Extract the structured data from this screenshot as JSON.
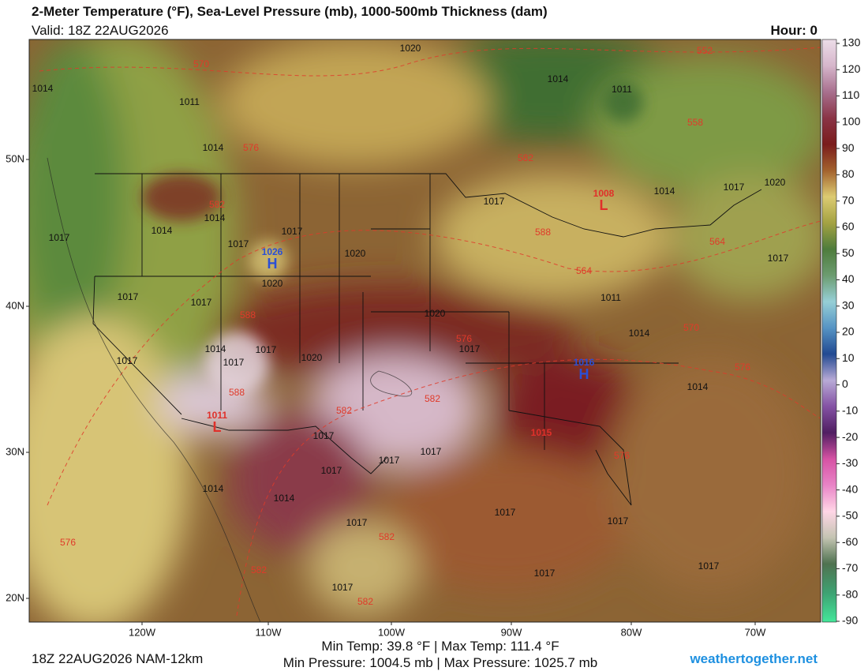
{
  "header": {
    "title": "2-Meter Temperature (°F), Sea-Level Pressure (mb), 1000-500mb Thickness (dam)",
    "valid": "Valid: 18Z 22AUG2026",
    "hour": "Hour: 0"
  },
  "lat_labels": [
    "50N",
    "40N",
    "30N",
    "20N"
  ],
  "lon_labels": [
    "120W",
    "110W",
    "100W",
    "90W",
    "80W",
    "70W"
  ],
  "colorbar": {
    "range": [
      -90,
      130
    ],
    "ticks": [
      130,
      120,
      110,
      100,
      90,
      80,
      70,
      60,
      50,
      40,
      30,
      20,
      10,
      0,
      -10,
      -20,
      -30,
      -40,
      -50,
      -60,
      -70,
      -80,
      -90
    ]
  },
  "pressure_labels": [
    "1020",
    "1014",
    "1011",
    "1014",
    "1011",
    "1014",
    "1014",
    "1014",
    "1017",
    "1017",
    "1017",
    "1017",
    "1014",
    "1017",
    "1020",
    "1020",
    "1020",
    "1017",
    "1017",
    "1017",
    "1020",
    "1017",
    "1011",
    "1014",
    "1014",
    "1017",
    "1017",
    "1017",
    "1020",
    "1014",
    "1017",
    "1017",
    "1017",
    "1017",
    "1017",
    "1014",
    "1014",
    "1017",
    "1017",
    "1017",
    "1017",
    "1017"
  ],
  "thickness_labels": [
    "570",
    "552",
    "558",
    "576",
    "582",
    "582",
    "588",
    "564",
    "564",
    "588",
    "576",
    "570",
    "576",
    "588",
    "582",
    "582",
    "576",
    "582",
    "576",
    "582",
    "582"
  ],
  "centers": [
    {
      "value": "1026",
      "letter": "H"
    },
    {
      "value": "1016",
      "letter": "H"
    },
    {
      "value": "1008",
      "letter": "L"
    },
    {
      "value": "1011",
      "letter": "L"
    },
    {
      "value": "1015"
    }
  ],
  "footer": {
    "run": "18Z 22AUG2026 NAM-12km",
    "temp": "Min Temp:  39.8 °F | Max Temp: 111.4 °F",
    "pressure": "Min Pressure: 1004.5 mb | Max Pressure: 1025.7 mb",
    "site": "weathertogether.net"
  }
}
